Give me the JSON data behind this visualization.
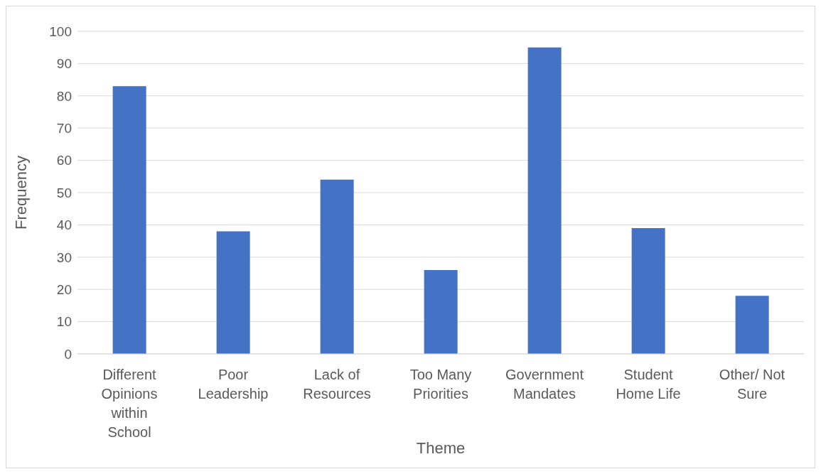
{
  "chart_data": {
    "type": "bar",
    "xlabel": "Theme",
    "ylabel": "Frequency",
    "categories": [
      "Different Opinions within School",
      "Poor Leadership",
      "Lack of Resources",
      "Too Many Priorities",
      "Government Mandates",
      "Student Home Life",
      "Other/ Not Sure"
    ],
    "values": [
      83,
      38,
      54,
      26,
      95,
      39,
      18
    ],
    "color": "#4472c4",
    "ylim": [
      0,
      100
    ],
    "yticks": [
      0,
      10,
      20,
      30,
      40,
      50,
      60,
      70,
      80,
      90,
      100
    ],
    "grid": "y",
    "legend": false
  }
}
